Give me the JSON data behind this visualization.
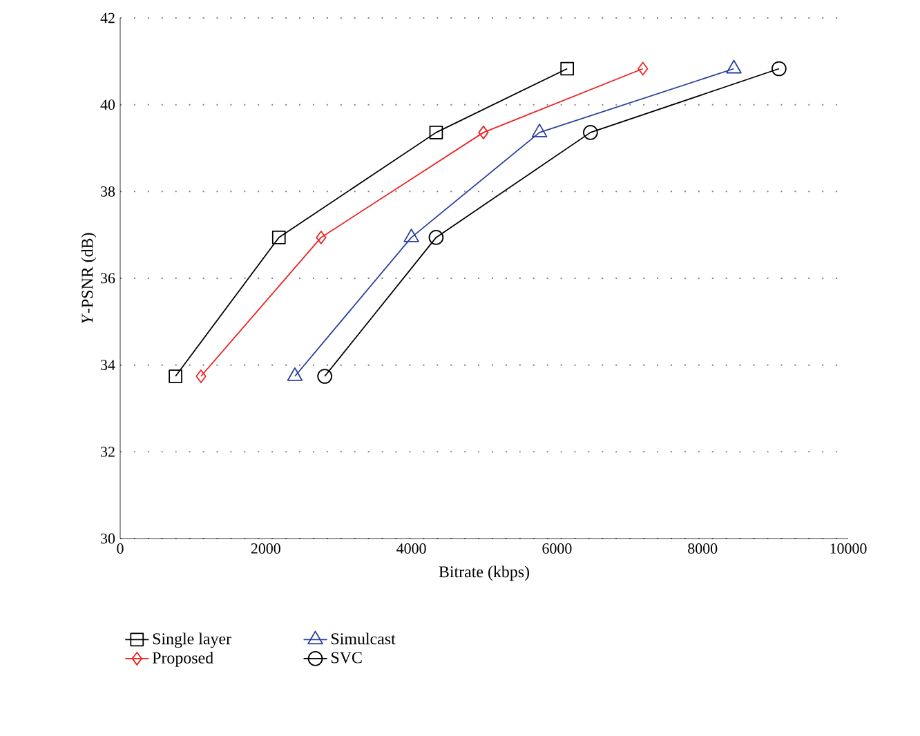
{
  "chart_data": {
    "type": "line",
    "xlabel": "Bitrate (kbps)",
    "ylabel": "*Y*-PSNR (dB)",
    "xlim": [
      0,
      10000
    ],
    "xticks": [
      0,
      2000,
      4000,
      6000,
      8000,
      10000
    ],
    "ylim": [
      30,
      42
    ],
    "yticks": [
      30,
      32,
      34,
      36,
      38,
      40,
      42
    ],
    "grid": "y",
    "legend": "bottom",
    "line_style": "solid",
    "series": [
      {
        "name": "Single layer",
        "color": "#000000",
        "marker": "square",
        "x": [
          760,
          2180,
          4340,
          6140
        ],
        "values": [
          33.74,
          36.94,
          39.36,
          40.83
        ]
      },
      {
        "name": "Proposed",
        "color": "#ee2222",
        "marker": "diamond",
        "x": [
          1110,
          2760,
          4990,
          7180
        ],
        "values": [
          33.74,
          36.94,
          39.36,
          40.83
        ]
      },
      {
        "name": "Simulcast",
        "color": "#2b3f9e",
        "marker": "triangle",
        "x": [
          2400,
          4000,
          5760,
          8430
        ],
        "values": [
          33.74,
          36.94,
          39.36,
          40.83
        ]
      },
      {
        "name": "SVC",
        "color": "#000000",
        "marker": "circle",
        "x": [
          2810,
          4340,
          6460,
          9050
        ],
        "values": [
          33.74,
          36.94,
          39.36,
          40.83
        ]
      }
    ]
  }
}
